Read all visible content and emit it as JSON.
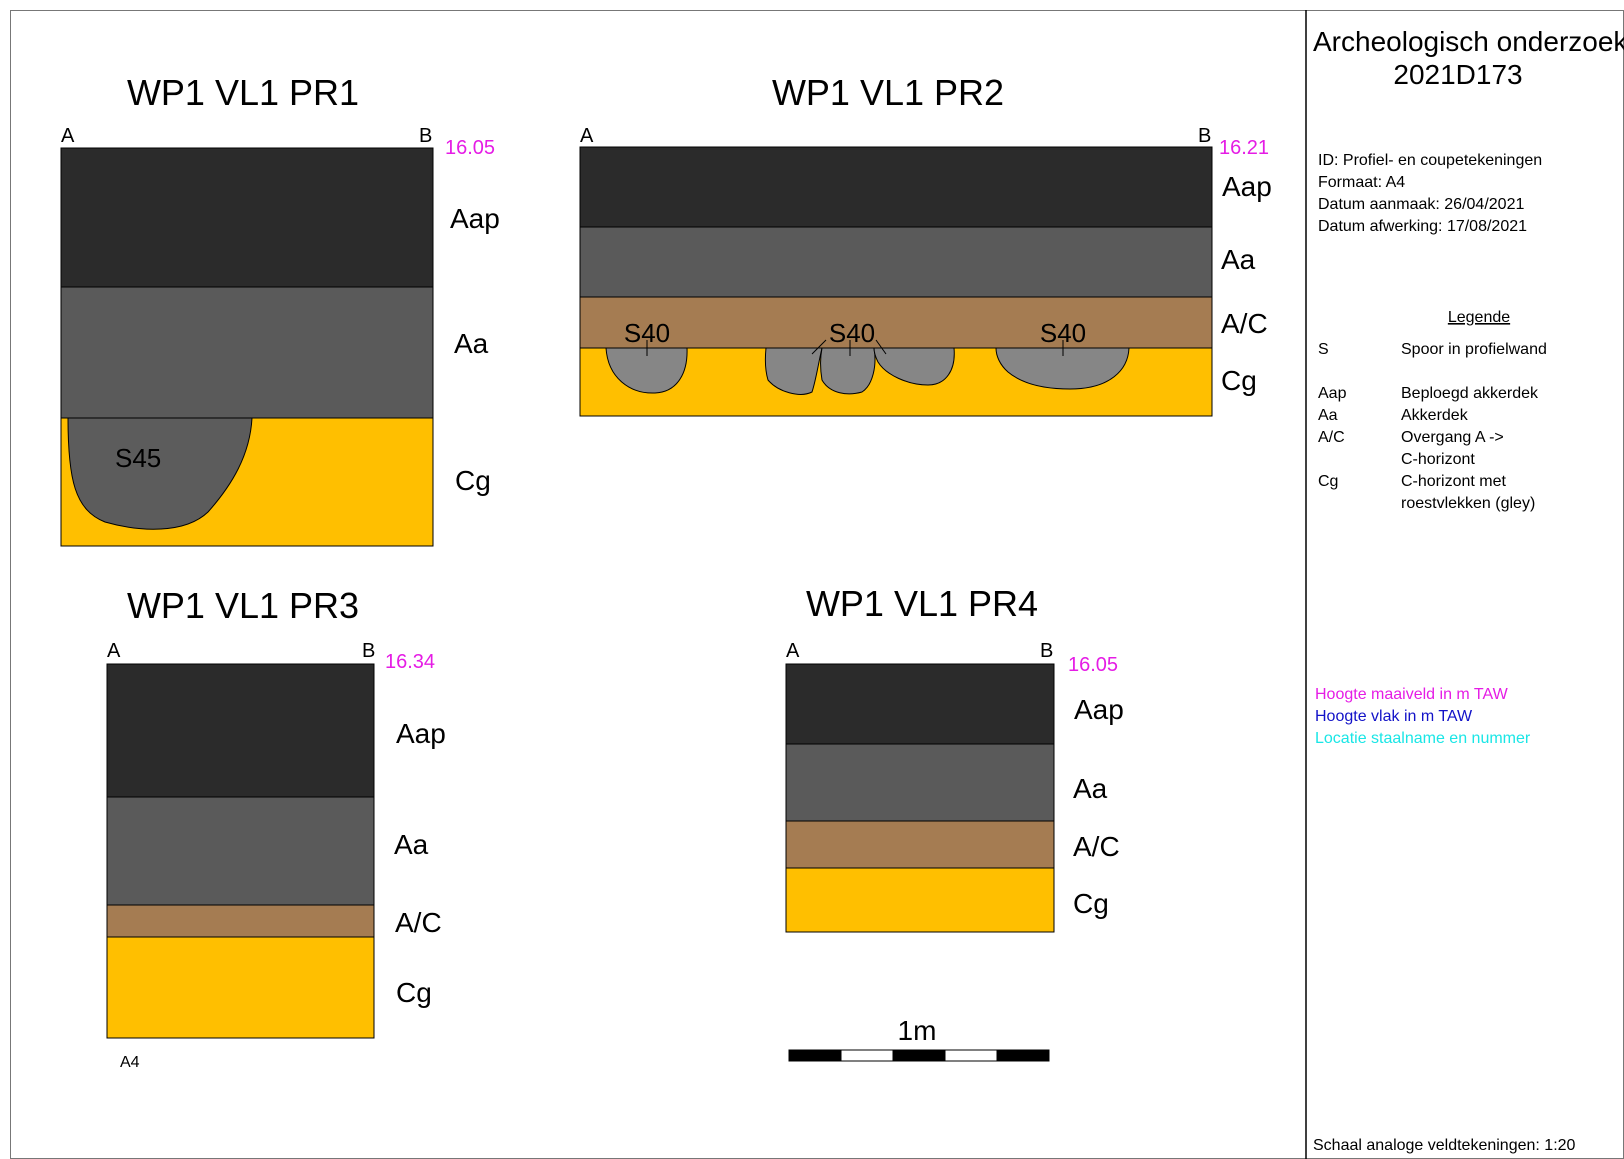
{
  "colors": {
    "Aap": "#2b2b2b",
    "Aa": "#5a5a5a",
    "A/C": "#a57c52",
    "Cg": "#ffbf00",
    "feature": "#868686",
    "feature_dark": "#5c5c5c",
    "elevation": "#e51ce5",
    "plane_height": "#1212c8",
    "sample": "#19e6e6"
  },
  "profiles": [
    {
      "title": "WP1 VL1 PR1",
      "a": "A",
      "b": "B",
      "elevation": "16.05",
      "layers": [
        "Aap",
        "Aa",
        "Cg"
      ],
      "features": [
        "S45"
      ]
    },
    {
      "title": "WP1 VL1 PR2",
      "a": "A",
      "b": "B",
      "elevation": "16.21",
      "layers": [
        "Aap",
        "Aa",
        "A/C",
        "Cg"
      ],
      "features": [
        "S40",
        "S40",
        "S40"
      ]
    },
    {
      "title": "WP1 VL1 PR3",
      "a": "A",
      "b": "B",
      "elevation": "16.34",
      "layers": [
        "Aap",
        "Aa",
        "A/C",
        "Cg"
      ],
      "features": []
    },
    {
      "title": "WP1 VL1 PR4",
      "a": "A",
      "b": "B",
      "elevation": "16.05",
      "layers": [
        "Aap",
        "Aa",
        "A/C",
        "Cg"
      ],
      "features": []
    }
  ],
  "sheet_label": "A4",
  "scalebar": {
    "label": "1m"
  },
  "sidebar": {
    "title_line1": "Archeologisch onderzoek",
    "title_line2": "2021D173",
    "info": [
      "ID: Profiel- en coupetekeningen",
      "Formaat: A4",
      "Datum aanmaak: 26/04/2021",
      "Datum afwerking: 17/08/2021"
    ],
    "legend_title": "Legende",
    "legend": [
      {
        "code": "S",
        "desc": [
          "Spoor in profielwand"
        ]
      },
      {
        "code": "Aap",
        "desc": [
          "Beploegd akkerdek"
        ]
      },
      {
        "code": "Aa",
        "desc": [
          "Akkerdek"
        ]
      },
      {
        "code": "A/C",
        "desc": [
          "Overgang A ->",
          "C-horizont"
        ]
      },
      {
        "code": "Cg",
        "desc": [
          "C-horizont met",
          "roestvlekken (gley)"
        ]
      }
    ],
    "color_legend": [
      "Hoogte maaiveld in m TAW",
      "Hoogte vlak in m TAW",
      "Locatie staalname en nummer"
    ],
    "scale_note": "Schaal analoge veldtekeningen: 1:20"
  }
}
